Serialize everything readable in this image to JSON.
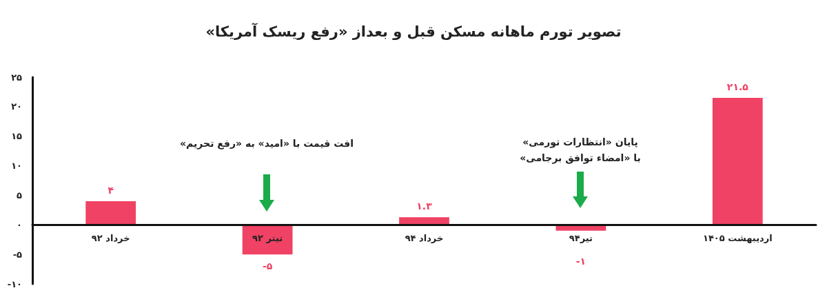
{
  "chart_data": {
    "type": "bar",
    "title": "تصویر تورم ماهانه مسکن قبل و بعداز «رفع ریسک آمریکا»",
    "categories": [
      "خرداد ۹۲",
      "تیتر ۹۲",
      "خرداد ۹۴",
      "تیر۹۴",
      "اردیبهشت ۱۴۰۵"
    ],
    "values": [
      4,
      -5,
      1.3,
      -1,
      21.5
    ],
    "color": "#ef4264",
    "value_labels": [
      "۴",
      "-۵",
      "۱.۳",
      "-۱",
      "۲۱.۵"
    ],
    "ylim": [
      -10,
      25
    ],
    "yticks": [
      {
        "value": -10,
        "label": "-۱۰"
      },
      {
        "value": -5,
        "label": "-۵"
      },
      {
        "value": 0,
        "label": "۰"
      },
      {
        "value": 5,
        "label": "۵"
      },
      {
        "value": 10,
        "label": "۱۰"
      },
      {
        "value": 15,
        "label": "۱۵"
      },
      {
        "value": 20,
        "label": "۲۰"
      },
      {
        "value": 25,
        "label": "۲۵"
      }
    ],
    "annotations": [
      "افت قیمت با «امید» به «رفع تحریم»",
      "پایان «انتظارات تورمی»\nبا «امضاء توافق برجامی»"
    ]
  }
}
